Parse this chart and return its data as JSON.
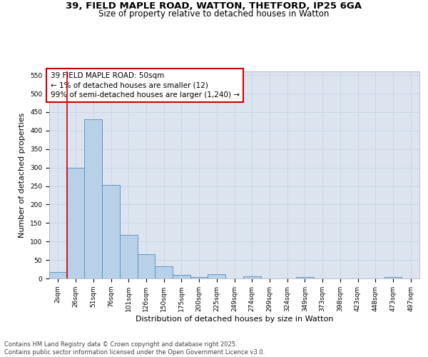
{
  "title_line1": "39, FIELD MAPLE ROAD, WATTON, THETFORD, IP25 6GA",
  "title_line2": "Size of property relative to detached houses in Watton",
  "xlabel": "Distribution of detached houses by size in Watton",
  "ylabel": "Number of detached properties",
  "bar_labels": [
    "2sqm",
    "26sqm",
    "51sqm",
    "76sqm",
    "101sqm",
    "126sqm",
    "150sqm",
    "175sqm",
    "200sqm",
    "225sqm",
    "249sqm",
    "274sqm",
    "299sqm",
    "324sqm",
    "349sqm",
    "373sqm",
    "398sqm",
    "423sqm",
    "448sqm",
    "473sqm",
    "497sqm"
  ],
  "bar_values": [
    17,
    300,
    430,
    253,
    118,
    65,
    33,
    9,
    4,
    11,
    0,
    5,
    0,
    0,
    3,
    0,
    0,
    0,
    0,
    3,
    0
  ],
  "bar_color": "#b8d0e8",
  "bar_edge_color": "#5090c0",
  "grid_color": "#c8d4e0",
  "background_color": "#dce4f0",
  "annotation_box_text": "39 FIELD MAPLE ROAD: 50sqm\n← 1% of detached houses are smaller (12)\n99% of semi-detached houses are larger (1,240) →",
  "annotation_box_color": "#ffffff",
  "annotation_box_edge_color": "#cc0000",
  "vline_color": "#cc0000",
  "vline_x_index": 1,
  "ylim": [
    0,
    560
  ],
  "yticks": [
    0,
    50,
    100,
    150,
    200,
    250,
    300,
    350,
    400,
    450,
    500,
    550
  ],
  "footer_line1": "Contains HM Land Registry data © Crown copyright and database right 2025.",
  "footer_line2": "Contains public sector information licensed under the Open Government Licence v3.0.",
  "title_fontsize": 9.5,
  "subtitle_fontsize": 8.5,
  "axis_label_fontsize": 8,
  "tick_fontsize": 6.5,
  "annotation_fontsize": 7.5,
  "footer_fontsize": 6
}
